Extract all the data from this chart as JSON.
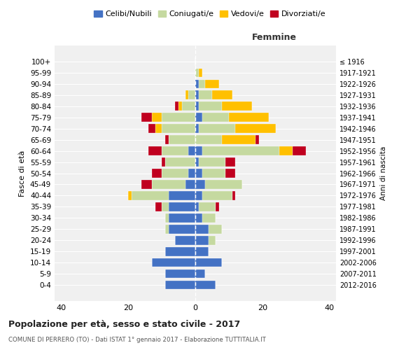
{
  "age_groups": [
    "0-4",
    "5-9",
    "10-14",
    "15-19",
    "20-24",
    "25-29",
    "30-34",
    "35-39",
    "40-44",
    "45-49",
    "50-54",
    "55-59",
    "60-64",
    "65-69",
    "70-74",
    "75-79",
    "80-84",
    "85-89",
    "90-94",
    "95-99",
    "100+"
  ],
  "birth_years": [
    "2012-2016",
    "2007-2011",
    "2002-2006",
    "1997-2001",
    "1992-1996",
    "1987-1991",
    "1982-1986",
    "1977-1981",
    "1972-1976",
    "1967-1971",
    "1962-1966",
    "1957-1961",
    "1952-1956",
    "1947-1951",
    "1942-1946",
    "1937-1941",
    "1932-1936",
    "1927-1931",
    "1922-1926",
    "1917-1921",
    "≤ 1916"
  ],
  "male": {
    "celibi": [
      9,
      9,
      13,
      9,
      6,
      8,
      8,
      8,
      8,
      3,
      2,
      0,
      2,
      0,
      0,
      0,
      0,
      0,
      0,
      0,
      0
    ],
    "coniugati": [
      0,
      0,
      0,
      0,
      0,
      1,
      1,
      2,
      11,
      10,
      8,
      9,
      8,
      8,
      10,
      10,
      4,
      2,
      0,
      0,
      0
    ],
    "vedovi": [
      0,
      0,
      0,
      0,
      0,
      0,
      0,
      0,
      1,
      0,
      0,
      0,
      0,
      0,
      2,
      3,
      1,
      1,
      0,
      0,
      0
    ],
    "divorziati": [
      0,
      0,
      0,
      0,
      0,
      0,
      0,
      2,
      0,
      3,
      3,
      1,
      4,
      1,
      2,
      3,
      1,
      0,
      0,
      0,
      0
    ]
  },
  "female": {
    "nubili": [
      6,
      3,
      8,
      4,
      4,
      4,
      2,
      1,
      2,
      3,
      2,
      1,
      2,
      0,
      1,
      2,
      1,
      1,
      1,
      0,
      0
    ],
    "coniugate": [
      0,
      0,
      0,
      0,
      2,
      4,
      4,
      5,
      9,
      11,
      7,
      8,
      23,
      8,
      11,
      8,
      7,
      4,
      2,
      1,
      0
    ],
    "vedove": [
      0,
      0,
      0,
      0,
      0,
      0,
      0,
      0,
      0,
      0,
      0,
      0,
      4,
      10,
      12,
      12,
      9,
      6,
      4,
      1,
      0
    ],
    "divorziate": [
      0,
      0,
      0,
      0,
      0,
      0,
      0,
      1,
      1,
      0,
      3,
      3,
      4,
      1,
      0,
      0,
      0,
      0,
      0,
      0,
      0
    ]
  },
  "colors": {
    "celibi": "#4472c4",
    "coniugati": "#c5d9a0",
    "vedovi": "#ffc000",
    "divorziati": "#c0001f"
  },
  "xlim": [
    -42,
    42
  ],
  "xticks": [
    -40,
    -20,
    0,
    20,
    40
  ],
  "xticklabels": [
    "40",
    "20",
    "0",
    "20",
    "40"
  ],
  "title": "Popolazione per età, sesso e stato civile - 2017",
  "subtitle": "COMUNE DI PERRERO (TO) - Dati ISTAT 1° gennaio 2017 - Elaborazione TUTTITALIA.IT",
  "ylabel": "Fasce di età",
  "right_ylabel": "Anni di nascita",
  "legend_labels": [
    "Celibi/Nubili",
    "Coniugati/e",
    "Vedovi/e",
    "Divorziati/e"
  ],
  "femmine_label": "Femmine",
  "bg_color": "#ffffff",
  "plot_bg": "#f0f0f0"
}
